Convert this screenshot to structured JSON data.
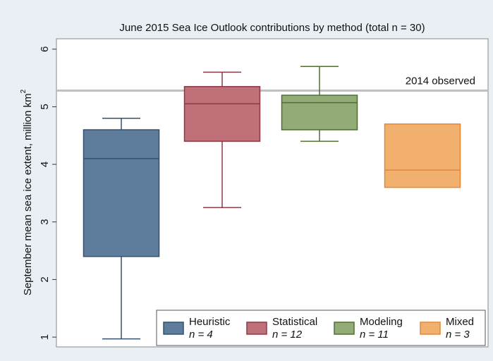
{
  "chart_data": {
    "type": "box",
    "title": "June 2015 Sea Ice Outlook contributions by method (total n = 30)",
    "y_label": "September mean sea ice extent, million km",
    "y_label_sup": "2",
    "ylim": [
      0.83,
      6.18
    ],
    "yticks": [
      1,
      2,
      3,
      4,
      5,
      6
    ],
    "reference": {
      "value": 5.28,
      "label": "2014 observed",
      "color": "#c0c0c0"
    },
    "series": [
      {
        "name": "Heuristic",
        "n_label": "n = 4",
        "color": "#5e7d9c",
        "edge": "#34506c",
        "min": 0.97,
        "q1": 2.4,
        "median": 4.1,
        "q3": 4.6,
        "max": 4.8
      },
      {
        "name": "Statistical",
        "n_label": "n = 12",
        "color": "#bf7079",
        "edge": "#8a3a44",
        "min": 3.25,
        "q1": 4.4,
        "median": 5.05,
        "q3": 5.35,
        "max": 5.6
      },
      {
        "name": "Modeling",
        "n_label": "n = 11",
        "color": "#93ab76",
        "edge": "#4f6e36",
        "min": 4.4,
        "q1": 4.6,
        "median": 5.07,
        "q3": 5.2,
        "max": 5.7
      },
      {
        "name": "Mixed",
        "n_label": "n = 3",
        "color": "#f2b06e",
        "edge": "#e0893a",
        "min": 3.6,
        "q1": 3.6,
        "median": 3.9,
        "q3": 4.7,
        "max": 4.7
      }
    ]
  }
}
